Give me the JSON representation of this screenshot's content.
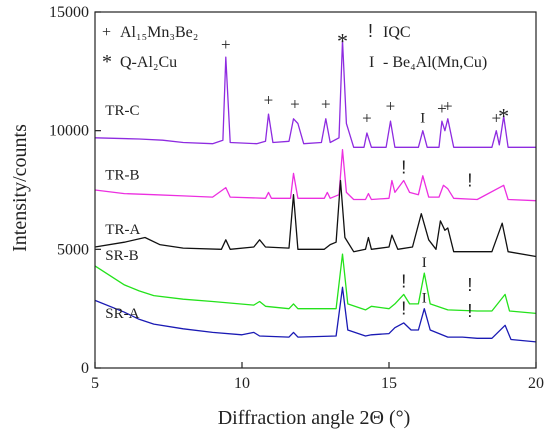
{
  "chart_data": {
    "type": "line",
    "xlabel": "Diffraction angle 2Θ (°)",
    "ylabel": "Intensity/counts",
    "xlim": [
      5,
      20
    ],
    "ylim": [
      0,
      15000
    ],
    "x_ticks": [
      5,
      10,
      15,
      20
    ],
    "y_ticks": [
      0,
      5000,
      10000,
      15000
    ],
    "legend": {
      "placement": "top",
      "left": [
        {
          "symbol": "+",
          "text": "Al₁₅Mn₃Be₂"
        },
        {
          "symbol": "*",
          "text": "Q-Al₂Cu"
        }
      ],
      "right": [
        {
          "symbol": "!",
          "text": "IQC"
        },
        {
          "symbol": "I",
          "text": "- Be₄Al(Mn,Cu)"
        }
      ]
    },
    "series": [
      {
        "name": "TR-C",
        "color": "#8e2be0",
        "label_x": 5.35,
        "label_y": 10650,
        "points": [
          [
            5,
            9700
          ],
          [
            6.5,
            9650
          ],
          [
            7.3,
            9600
          ],
          [
            8,
            9500
          ],
          [
            9,
            9450
          ],
          [
            9.35,
            9600
          ],
          [
            9.45,
            13100
          ],
          [
            9.6,
            9500
          ],
          [
            10.5,
            9450
          ],
          [
            10.8,
            9550
          ],
          [
            10.9,
            10700
          ],
          [
            11.05,
            9500
          ],
          [
            11.6,
            9550
          ],
          [
            11.75,
            10500
          ],
          [
            11.9,
            10300
          ],
          [
            12.1,
            9450
          ],
          [
            12.7,
            9500
          ],
          [
            12.85,
            10500
          ],
          [
            13.0,
            9500
          ],
          [
            13.3,
            9700
          ],
          [
            13.42,
            13800
          ],
          [
            13.55,
            10300
          ],
          [
            13.8,
            9300
          ],
          [
            14.15,
            9300
          ],
          [
            14.25,
            9900
          ],
          [
            14.4,
            9300
          ],
          [
            14.9,
            9300
          ],
          [
            15.05,
            10400
          ],
          [
            15.2,
            9300
          ],
          [
            16.0,
            9300
          ],
          [
            16.15,
            10000
          ],
          [
            16.3,
            9300
          ],
          [
            16.7,
            9300
          ],
          [
            16.8,
            10400
          ],
          [
            16.9,
            10000
          ],
          [
            17.0,
            10500
          ],
          [
            17.2,
            9300
          ],
          [
            17.7,
            9300
          ],
          [
            18.5,
            9300
          ],
          [
            18.65,
            10000
          ],
          [
            18.75,
            9400
          ],
          [
            18.9,
            10600
          ],
          [
            19.05,
            9300
          ],
          [
            19.6,
            9300
          ],
          [
            20,
            9300
          ]
        ]
      },
      {
        "name": "TR-B",
        "color": "#ec2fe0",
        "label_x": 5.35,
        "label_y": 7950,
        "points": [
          [
            5,
            7500
          ],
          [
            6,
            7350
          ],
          [
            7,
            7300
          ],
          [
            8,
            7250
          ],
          [
            9,
            7200
          ],
          [
            9.45,
            7600
          ],
          [
            9.6,
            7200
          ],
          [
            10.8,
            7150
          ],
          [
            10.9,
            7400
          ],
          [
            11.0,
            7150
          ],
          [
            11.65,
            7150
          ],
          [
            11.75,
            8200
          ],
          [
            11.9,
            7150
          ],
          [
            12.8,
            7150
          ],
          [
            12.9,
            7400
          ],
          [
            13.0,
            7150
          ],
          [
            13.3,
            7300
          ],
          [
            13.42,
            9200
          ],
          [
            13.55,
            7400
          ],
          [
            13.8,
            7100
          ],
          [
            14.2,
            7100
          ],
          [
            14.3,
            7350
          ],
          [
            14.4,
            7100
          ],
          [
            15.0,
            7150
          ],
          [
            15.1,
            7900
          ],
          [
            15.2,
            7400
          ],
          [
            15.5,
            7900
          ],
          [
            15.7,
            7400
          ],
          [
            16.0,
            7300
          ],
          [
            16.15,
            8100
          ],
          [
            16.35,
            7200
          ],
          [
            16.7,
            7200
          ],
          [
            16.85,
            7700
          ],
          [
            17.0,
            7550
          ],
          [
            17.2,
            7150
          ],
          [
            18.0,
            7100
          ],
          [
            18.9,
            7700
          ],
          [
            19.05,
            7100
          ],
          [
            20,
            7050
          ]
        ]
      },
      {
        "name": "TR-A",
        "color": "#111111",
        "label_x": 5.35,
        "label_y": 5650,
        "points": [
          [
            5,
            5100
          ],
          [
            6,
            5300
          ],
          [
            6.7,
            5500
          ],
          [
            7.2,
            5200
          ],
          [
            8,
            5050
          ],
          [
            9.3,
            5000
          ],
          [
            9.45,
            5400
          ],
          [
            9.6,
            5000
          ],
          [
            10.4,
            5100
          ],
          [
            10.6,
            5400
          ],
          [
            10.8,
            5100
          ],
          [
            11.6,
            5050
          ],
          [
            11.75,
            7300
          ],
          [
            11.9,
            5000
          ],
          [
            12.8,
            5000
          ],
          [
            13.0,
            5200
          ],
          [
            13.2,
            5300
          ],
          [
            13.35,
            7900
          ],
          [
            13.5,
            5500
          ],
          [
            13.8,
            4900
          ],
          [
            14.2,
            5000
          ],
          [
            14.3,
            5500
          ],
          [
            14.4,
            5000
          ],
          [
            15.0,
            5100
          ],
          [
            15.1,
            5600
          ],
          [
            15.3,
            5000
          ],
          [
            15.8,
            5100
          ],
          [
            16.1,
            6500
          ],
          [
            16.35,
            5400
          ],
          [
            16.6,
            5000
          ],
          [
            16.75,
            6200
          ],
          [
            16.9,
            5800
          ],
          [
            17.0,
            5900
          ],
          [
            17.2,
            4900
          ],
          [
            18.5,
            4900
          ],
          [
            18.85,
            6100
          ],
          [
            19.05,
            4900
          ],
          [
            20,
            4700
          ]
        ]
      },
      {
        "name": "SR-B",
        "color": "#24e21b",
        "label_x": 5.35,
        "label_y": 4550,
        "points": [
          [
            5,
            4300
          ],
          [
            6,
            3500
          ],
          [
            6.5,
            3250
          ],
          [
            7,
            3050
          ],
          [
            8,
            2900
          ],
          [
            9,
            2800
          ],
          [
            10.4,
            2650
          ],
          [
            10.6,
            2800
          ],
          [
            10.8,
            2600
          ],
          [
            11.6,
            2500
          ],
          [
            11.75,
            2700
          ],
          [
            11.9,
            2500
          ],
          [
            13.2,
            2500
          ],
          [
            13.42,
            4800
          ],
          [
            13.6,
            2700
          ],
          [
            14.2,
            2450
          ],
          [
            14.4,
            2600
          ],
          [
            15.0,
            2500
          ],
          [
            15.2,
            2700
          ],
          [
            15.5,
            3100
          ],
          [
            15.7,
            2700
          ],
          [
            16.0,
            2700
          ],
          [
            16.2,
            4000
          ],
          [
            16.4,
            2700
          ],
          [
            17.0,
            2450
          ],
          [
            18.0,
            2400
          ],
          [
            18.5,
            2400
          ],
          [
            18.95,
            3100
          ],
          [
            19.1,
            2400
          ],
          [
            20,
            2300
          ]
        ]
      },
      {
        "name": "SR-A",
        "color": "#1a1ab4",
        "label_x": 5.35,
        "label_y": 2100,
        "points": [
          [
            5,
            2850
          ],
          [
            6,
            2350
          ],
          [
            6.5,
            2050
          ],
          [
            7,
            1850
          ],
          [
            8,
            1650
          ],
          [
            9,
            1500
          ],
          [
            10,
            1400
          ],
          [
            10.4,
            1500
          ],
          [
            10.6,
            1350
          ],
          [
            11.6,
            1300
          ],
          [
            11.75,
            1500
          ],
          [
            11.9,
            1300
          ],
          [
            13.2,
            1350
          ],
          [
            13.42,
            3400
          ],
          [
            13.6,
            1600
          ],
          [
            14.2,
            1350
          ],
          [
            14.4,
            1400
          ],
          [
            15.0,
            1450
          ],
          [
            15.2,
            1700
          ],
          [
            15.5,
            1900
          ],
          [
            15.75,
            1600
          ],
          [
            16.0,
            1600
          ],
          [
            16.2,
            2500
          ],
          [
            16.4,
            1600
          ],
          [
            17.0,
            1300
          ],
          [
            17.5,
            1300
          ],
          [
            18.0,
            1250
          ],
          [
            18.5,
            1250
          ],
          [
            18.95,
            1800
          ],
          [
            19.15,
            1200
          ],
          [
            20,
            1100
          ]
        ]
      }
    ],
    "annotations": [
      {
        "glyph": "+",
        "x": 9.45,
        "y": 13400,
        "kind": "plus"
      },
      {
        "glyph": "+",
        "x": 10.9,
        "y": 11050,
        "kind": "plus"
      },
      {
        "glyph": "+",
        "x": 11.8,
        "y": 10900,
        "kind": "plus"
      },
      {
        "glyph": "+",
        "x": 12.85,
        "y": 10900,
        "kind": "plus"
      },
      {
        "glyph": "*",
        "x": 13.42,
        "y": 14050,
        "kind": "star"
      },
      {
        "glyph": "+",
        "x": 14.25,
        "y": 10300,
        "kind": "plus"
      },
      {
        "glyph": "+",
        "x": 15.05,
        "y": 10800,
        "kind": "plus"
      },
      {
        "glyph": "I",
        "x": 16.15,
        "y": 10350,
        "kind": "i"
      },
      {
        "glyph": "+",
        "x": 16.8,
        "y": 10700,
        "kind": "plus"
      },
      {
        "glyph": "+",
        "x": 17.0,
        "y": 10800,
        "kind": "plus"
      },
      {
        "glyph": "+",
        "x": 18.65,
        "y": 10300,
        "kind": "plus"
      },
      {
        "glyph": "*",
        "x": 18.9,
        "y": 10900,
        "kind": "star"
      },
      {
        "glyph": "!",
        "x": 15.5,
        "y": 8200,
        "kind": "excl"
      },
      {
        "glyph": "!",
        "x": 17.75,
        "y": 7650,
        "kind": "excl"
      },
      {
        "glyph": "!",
        "x": 15.5,
        "y": 3400,
        "kind": "excl"
      },
      {
        "glyph": "I",
        "x": 16.2,
        "y": 4250,
        "kind": "i"
      },
      {
        "glyph": "!",
        "x": 17.75,
        "y": 3250,
        "kind": "excl"
      },
      {
        "glyph": "!",
        "x": 15.5,
        "y": 2250,
        "kind": "excl"
      },
      {
        "glyph": "I",
        "x": 16.2,
        "y": 2750,
        "kind": "i"
      },
      {
        "glyph": "!",
        "x": 17.75,
        "y": 2150,
        "kind": "excl"
      }
    ]
  }
}
